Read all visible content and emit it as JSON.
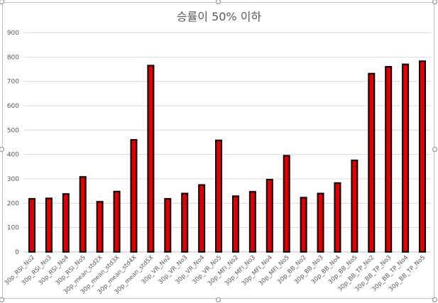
{
  "chart_data": {
    "type": "bar",
    "title": "승률이 50% 이하",
    "categories": [
      "30p_RSI_No2",
      "30p_RSI_No3",
      "30p_RSI_No4",
      "30p_RSI_No5",
      "30p_mean_std2X",
      "30p_mean_std3X",
      "30p_mean_std4X",
      "30p_mean_std5X",
      "30p_VR_No2",
      "30p_VR_No3",
      "30p_VR_No4",
      "30p_VR_No5",
      "30p_MFI_No2",
      "30p_MFI_No3",
      "30p_MFI_No4",
      "30p_MFI_No5",
      "30p_BB_No2",
      "30p_BB_No3",
      "30p_BB_No4",
      "30p_BB_No5",
      "30p_BB_TP_No2",
      "30p_BB_TP_No3",
      "30p_BB_TP_No4",
      "30p_BB_TP_No5"
    ],
    "values": [
      218,
      220,
      238,
      308,
      206,
      248,
      460,
      765,
      218,
      240,
      275,
      458,
      229,
      247,
      297,
      395,
      223,
      240,
      283,
      376,
      732,
      760,
      770,
      783
    ],
    "ylim": [
      0,
      900
    ],
    "yticks": [
      0,
      100,
      200,
      300,
      400,
      500,
      600,
      700,
      800,
      900
    ],
    "xlabel": "",
    "ylabel": "",
    "grid": true,
    "legend": "none",
    "bar_fill_color": "#e00000",
    "bar_edge_color": "#000000",
    "grid_color": "#d9d9d9",
    "text_color": "#595959"
  }
}
